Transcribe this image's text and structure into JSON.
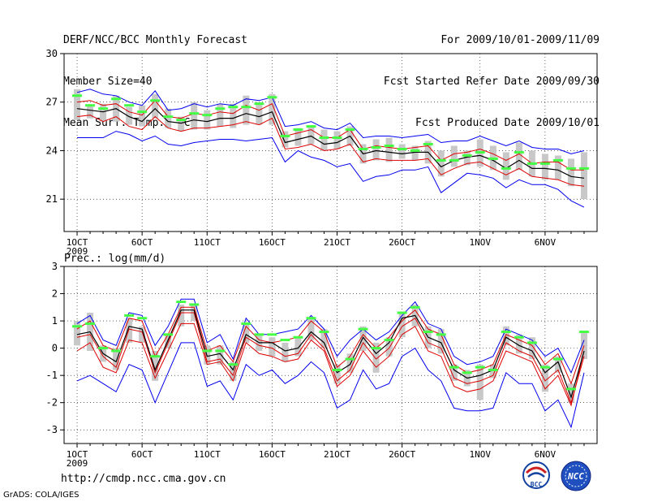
{
  "header": {
    "title": "DERF/NCC/BCC Monthly Forecast",
    "member_size": "Member Size=40",
    "variable": "Mean Surf. Temp.: °C",
    "period": "For 2009/10/01-2009/11/09",
    "start_date": "Fcst Started Refer Date 2009/09/30",
    "produced_date": "Fcst Produced Date 2009/10/01"
  },
  "footer": {
    "url": "http://cmdp.ncc.cma.gov.cn",
    "credit": "GrADS: COLA/IGES"
  },
  "logos": {
    "bcc_label": "BCC",
    "ncc_label": "NCC"
  },
  "colors": {
    "envelope": "#0000ee",
    "spread": "#dd0000",
    "mean": "#000000",
    "box": "#c8c8c8",
    "member_mark": "#44ff44"
  },
  "chart_data": [
    {
      "type": "line",
      "title": "Mean Surf. Temp.: °C",
      "x": [
        1,
        2,
        3,
        4,
        5,
        6,
        7,
        8,
        9,
        10,
        11,
        12,
        13,
        14,
        15,
        16,
        17,
        18,
        19,
        20,
        21,
        22,
        23,
        24,
        25,
        26,
        27,
        28,
        29,
        30,
        31,
        32,
        33,
        34,
        35,
        36,
        37,
        38,
        39,
        40
      ],
      "xticks": [
        {
          "day": 1,
          "label": "1OCT",
          "sub": "2009"
        },
        {
          "day": 6,
          "label": "6OCT"
        },
        {
          "day": 11,
          "label": "11OCT"
        },
        {
          "day": 16,
          "label": "16OCT"
        },
        {
          "day": 21,
          "label": "21OCT"
        },
        {
          "day": 26,
          "label": "26OCT"
        },
        {
          "day": 32,
          "label": "1NOV"
        },
        {
          "day": 37,
          "label": "6NOV"
        }
      ],
      "ylim": [
        19.0,
        30.0
      ],
      "yticks": [
        21,
        24,
        27,
        30
      ],
      "series": [
        {
          "name": "max",
          "values": [
            27.6,
            27.8,
            27.5,
            27.4,
            27.0,
            26.8,
            27.7,
            26.5,
            26.6,
            26.9,
            26.7,
            26.9,
            26.8,
            27.2,
            27.1,
            27.3,
            25.5,
            25.6,
            25.8,
            25.4,
            25.3,
            25.7,
            24.8,
            24.9,
            24.9,
            24.8,
            24.9,
            25.0,
            24.5,
            24.6,
            24.6,
            24.9,
            24.6,
            24.3,
            24.6,
            24.2,
            24.1,
            24.1,
            23.8,
            24.0
          ]
        },
        {
          "name": "upper",
          "values": [
            27.0,
            27.1,
            26.8,
            26.9,
            26.4,
            26.2,
            27.1,
            26.1,
            26.0,
            26.3,
            26.2,
            26.4,
            26.3,
            26.8,
            26.5,
            26.9,
            24.9,
            25.1,
            25.3,
            24.8,
            24.8,
            25.3,
            24.1,
            24.3,
            24.2,
            24.1,
            24.2,
            24.3,
            23.4,
            23.8,
            23.9,
            24.1,
            23.8,
            23.4,
            23.8,
            23.2,
            23.3,
            23.3,
            22.8,
            22.8
          ]
        },
        {
          "name": "mean",
          "values": [
            26.6,
            26.5,
            26.4,
            26.6,
            26.1,
            25.8,
            26.6,
            25.8,
            25.7,
            25.9,
            25.8,
            26.0,
            26.0,
            26.3,
            26.1,
            26.4,
            24.5,
            24.7,
            24.9,
            24.4,
            24.5,
            24.9,
            23.8,
            24.0,
            23.9,
            23.8,
            23.9,
            23.9,
            23.0,
            23.4,
            23.6,
            23.7,
            23.4,
            22.9,
            23.4,
            22.9,
            22.9,
            22.8,
            22.4,
            22.3
          ]
        },
        {
          "name": "lower",
          "values": [
            26.1,
            26.2,
            25.8,
            26.1,
            25.5,
            25.3,
            26.1,
            25.4,
            25.2,
            25.4,
            25.4,
            25.5,
            25.6,
            25.8,
            25.6,
            26.0,
            24.1,
            24.2,
            24.4,
            24.0,
            24.1,
            24.4,
            23.3,
            23.5,
            23.4,
            23.4,
            23.4,
            23.5,
            22.5,
            22.9,
            23.2,
            23.3,
            22.9,
            22.5,
            22.9,
            22.4,
            22.3,
            22.2,
            21.9,
            21.8
          ]
        },
        {
          "name": "min",
          "values": [
            24.8,
            24.8,
            24.8,
            25.2,
            25.0,
            24.6,
            24.9,
            24.4,
            24.3,
            24.5,
            24.6,
            24.7,
            24.7,
            24.6,
            24.7,
            24.8,
            23.3,
            24.0,
            23.6,
            23.4,
            23.0,
            23.2,
            22.1,
            22.4,
            22.5,
            22.8,
            22.8,
            23.0,
            21.4,
            22.0,
            22.6,
            22.5,
            22.3,
            21.7,
            22.2,
            21.9,
            21.9,
            21.6,
            20.9,
            20.5
          ]
        },
        {
          "name": "box_top",
          "values": [
            27.8,
            26.8,
            26.9,
            27.4,
            26.7,
            26.8,
            27.5,
            26.6,
            26.1,
            27.0,
            26.5,
            26.9,
            26.9,
            27.4,
            27.0,
            27.5,
            25.2,
            25.4,
            25.5,
            25.3,
            25.2,
            25.5,
            24.4,
            24.7,
            24.8,
            24.4,
            24.3,
            24.6,
            24.0,
            24.3,
            24.0,
            24.7,
            24.3,
            23.9,
            24.5,
            24.0,
            23.8,
            23.7,
            23.5,
            23.9
          ]
        },
        {
          "name": "box_bottom",
          "values": [
            25.9,
            26.0,
            25.8,
            25.8,
            25.6,
            25.5,
            26.0,
            25.4,
            25.2,
            25.3,
            25.3,
            25.5,
            25.4,
            25.6,
            25.6,
            25.6,
            24.2,
            24.3,
            24.4,
            24.0,
            24.1,
            24.3,
            23.2,
            23.4,
            23.3,
            23.5,
            23.4,
            23.2,
            22.4,
            23.0,
            23.1,
            23.0,
            22.8,
            22.2,
            22.8,
            22.4,
            22.2,
            22.2,
            21.8,
            21.0
          ]
        },
        {
          "name": "member_mark",
          "values": [
            27.4,
            26.8,
            26.6,
            27.2,
            26.8,
            26.4,
            27.1,
            26.1,
            25.9,
            26.3,
            26.2,
            26.6,
            26.7,
            26.7,
            26.9,
            27.3,
            24.9,
            25.3,
            25.5,
            24.8,
            24.8,
            25.3,
            24.1,
            24.2,
            24.3,
            24.1,
            24.0,
            24.4,
            23.4,
            23.4,
            23.7,
            23.9,
            23.5,
            22.9,
            23.9,
            23.2,
            23.2,
            23.4,
            22.9,
            22.9
          ]
        }
      ]
    },
    {
      "type": "line",
      "title": "Prec.: log(mm/d)",
      "x": [
        1,
        2,
        3,
        4,
        5,
        6,
        7,
        8,
        9,
        10,
        11,
        12,
        13,
        14,
        15,
        16,
        17,
        18,
        19,
        20,
        21,
        22,
        23,
        24,
        25,
        26,
        27,
        28,
        29,
        30,
        31,
        32,
        33,
        34,
        35,
        36,
        37,
        38,
        39,
        40
      ],
      "xticks": [
        {
          "day": 1,
          "label": "1OCT",
          "sub": "2009"
        },
        {
          "day": 6,
          "label": "6OCT"
        },
        {
          "day": 11,
          "label": "11OCT"
        },
        {
          "day": 16,
          "label": "16OCT"
        },
        {
          "day": 21,
          "label": "21OCT"
        },
        {
          "day": 26,
          "label": "26OCT"
        },
        {
          "day": 32,
          "label": "1NOV"
        },
        {
          "day": 37,
          "label": "6NOV"
        }
      ],
      "ylim": [
        -3.5,
        3.0
      ],
      "yticks": [
        -3,
        -2,
        -1,
        0,
        1,
        2,
        3
      ],
      "series": [
        {
          "name": "max",
          "values": [
            0.9,
            1.2,
            0.3,
            0.1,
            1.3,
            1.2,
            0.1,
            0.8,
            1.8,
            1.8,
            0.2,
            0.5,
            -0.4,
            1.1,
            0.5,
            0.5,
            0.6,
            0.7,
            1.2,
            0.7,
            -0.3,
            0.3,
            0.7,
            0.3,
            0.6,
            1.2,
            1.7,
            0.9,
            0.7,
            -0.3,
            -0.6,
            -0.5,
            -0.3,
            0.7,
            0.5,
            0.3,
            -0.3,
            0.0,
            -0.9,
            0.3
          ]
        },
        {
          "name": "upper",
          "values": [
            0.7,
            1.0,
            0.1,
            -0.1,
            1.1,
            1.0,
            -0.3,
            0.5,
            1.5,
            1.5,
            -0.1,
            0.1,
            -0.5,
            0.8,
            0.3,
            0.2,
            0.3,
            0.4,
            1.0,
            0.6,
            -0.7,
            -0.3,
            0.5,
            0.0,
            0.4,
            1.0,
            1.4,
            0.7,
            0.5,
            -0.6,
            -0.9,
            -0.8,
            -0.6,
            0.5,
            0.3,
            0.1,
            -0.6,
            -0.2,
            -1.3,
            0.1
          ]
        },
        {
          "name": "mean",
          "values": [
            0.5,
            0.6,
            -0.2,
            -0.5,
            0.8,
            0.7,
            -0.8,
            0.3,
            1.4,
            1.4,
            -0.3,
            -0.2,
            -0.8,
            0.5,
            0.2,
            0.2,
            -0.1,
            0.0,
            0.6,
            0.2,
            -0.9,
            -0.6,
            0.4,
            -0.2,
            0.2,
            1.1,
            1.2,
            0.4,
            0.2,
            -0.8,
            -1.1,
            -1.0,
            -0.8,
            0.4,
            0.1,
            -0.1,
            -0.9,
            -0.5,
            -1.8,
            -0.1
          ]
        },
        {
          "name": "lower",
          "values": [
            0.4,
            0.5,
            -0.3,
            -0.7,
            0.7,
            0.6,
            -0.9,
            0.2,
            1.3,
            1.3,
            -0.5,
            -0.4,
            -1.0,
            0.4,
            0.1,
            0.0,
            -0.3,
            -0.2,
            0.5,
            0.0,
            -1.2,
            -0.8,
            0.2,
            -0.4,
            0.0,
            0.8,
            1.1,
            0.2,
            0.0,
            -1.1,
            -1.3,
            -1.2,
            -1.0,
            0.2,
            -0.1,
            -0.3,
            -1.2,
            -0.8,
            -2.0,
            -0.3
          ]
        },
        {
          "name": "red_low",
          "values": [
            -0.1,
            0.2,
            -0.7,
            -0.9,
            0.3,
            0.2,
            -1.1,
            -0.1,
            0.9,
            0.9,
            -0.6,
            -0.5,
            -1.2,
            0.2,
            -0.2,
            -0.3,
            -0.5,
            -0.4,
            0.3,
            -0.1,
            -1.4,
            -1.0,
            -0.1,
            -0.7,
            -0.3,
            0.5,
            0.8,
            -0.1,
            -0.3,
            -1.4,
            -1.6,
            -1.5,
            -1.2,
            -0.1,
            -0.3,
            -0.5,
            -1.5,
            -1.0,
            -2.1,
            -0.1
          ]
        },
        {
          "name": "min",
          "values": [
            -1.2,
            -1.0,
            -1.3,
            -1.6,
            -0.6,
            -0.8,
            -2.0,
            -0.9,
            0.2,
            0.2,
            -1.4,
            -1.2,
            -1.9,
            -0.6,
            -1.0,
            -0.8,
            -1.3,
            -1.0,
            -0.5,
            -0.9,
            -2.2,
            -1.9,
            -0.8,
            -1.5,
            -1.3,
            -0.3,
            -0.0,
            -0.8,
            -1.2,
            -2.2,
            -2.3,
            -2.3,
            -2.2,
            -0.9,
            -1.3,
            -1.3,
            -2.3,
            -1.9,
            -2.9,
            -0.9
          ]
        },
        {
          "name": "box_top",
          "values": [
            1.0,
            1.3,
            0.1,
            0.0,
            1.1,
            0.8,
            -0.1,
            0.5,
            1.6,
            1.6,
            0.1,
            0.1,
            -0.5,
            0.9,
            0.5,
            0.4,
            0.2,
            0.4,
            1.1,
            0.7,
            -0.6,
            -0.2,
            0.8,
            0.2,
            0.4,
            1.3,
            1.6,
            0.8,
            0.7,
            -0.6,
            -0.8,
            -0.6,
            -0.6,
            0.8,
            0.5,
            0.4,
            -0.6,
            -0.3,
            -1.3,
            0.6
          ]
        },
        {
          "name": "box_bottom",
          "values": [
            0.1,
            -0.1,
            -0.5,
            -0.8,
            0.2,
            0.2,
            -1.2,
            0.0,
            0.8,
            1.0,
            -0.6,
            -0.6,
            -1.2,
            0.2,
            -0.1,
            -0.3,
            -0.5,
            -0.3,
            0.3,
            0.0,
            -1.3,
            -0.9,
            -0.1,
            -0.9,
            -0.3,
            0.4,
            0.8,
            0.0,
            -0.2,
            -1.2,
            -1.4,
            -1.9,
            -1.1,
            0.1,
            -0.2,
            -0.4,
            -1.6,
            -0.9,
            -2.0,
            -0.4
          ]
        },
        {
          "name": "member_mark",
          "values": [
            0.8,
            0.9,
            0.0,
            -0.1,
            1.2,
            1.1,
            -0.3,
            0.5,
            1.7,
            1.6,
            -0.1,
            -0.1,
            -0.6,
            0.9,
            0.5,
            0.5,
            0.3,
            0.4,
            1.1,
            0.6,
            -0.8,
            -0.4,
            0.7,
            0.0,
            0.3,
            1.3,
            1.5,
            0.6,
            0.5,
            -0.7,
            -0.9,
            -0.7,
            -0.8,
            0.6,
            0.4,
            0.2,
            -0.7,
            -0.4,
            -1.5,
            0.6
          ]
        }
      ]
    }
  ]
}
